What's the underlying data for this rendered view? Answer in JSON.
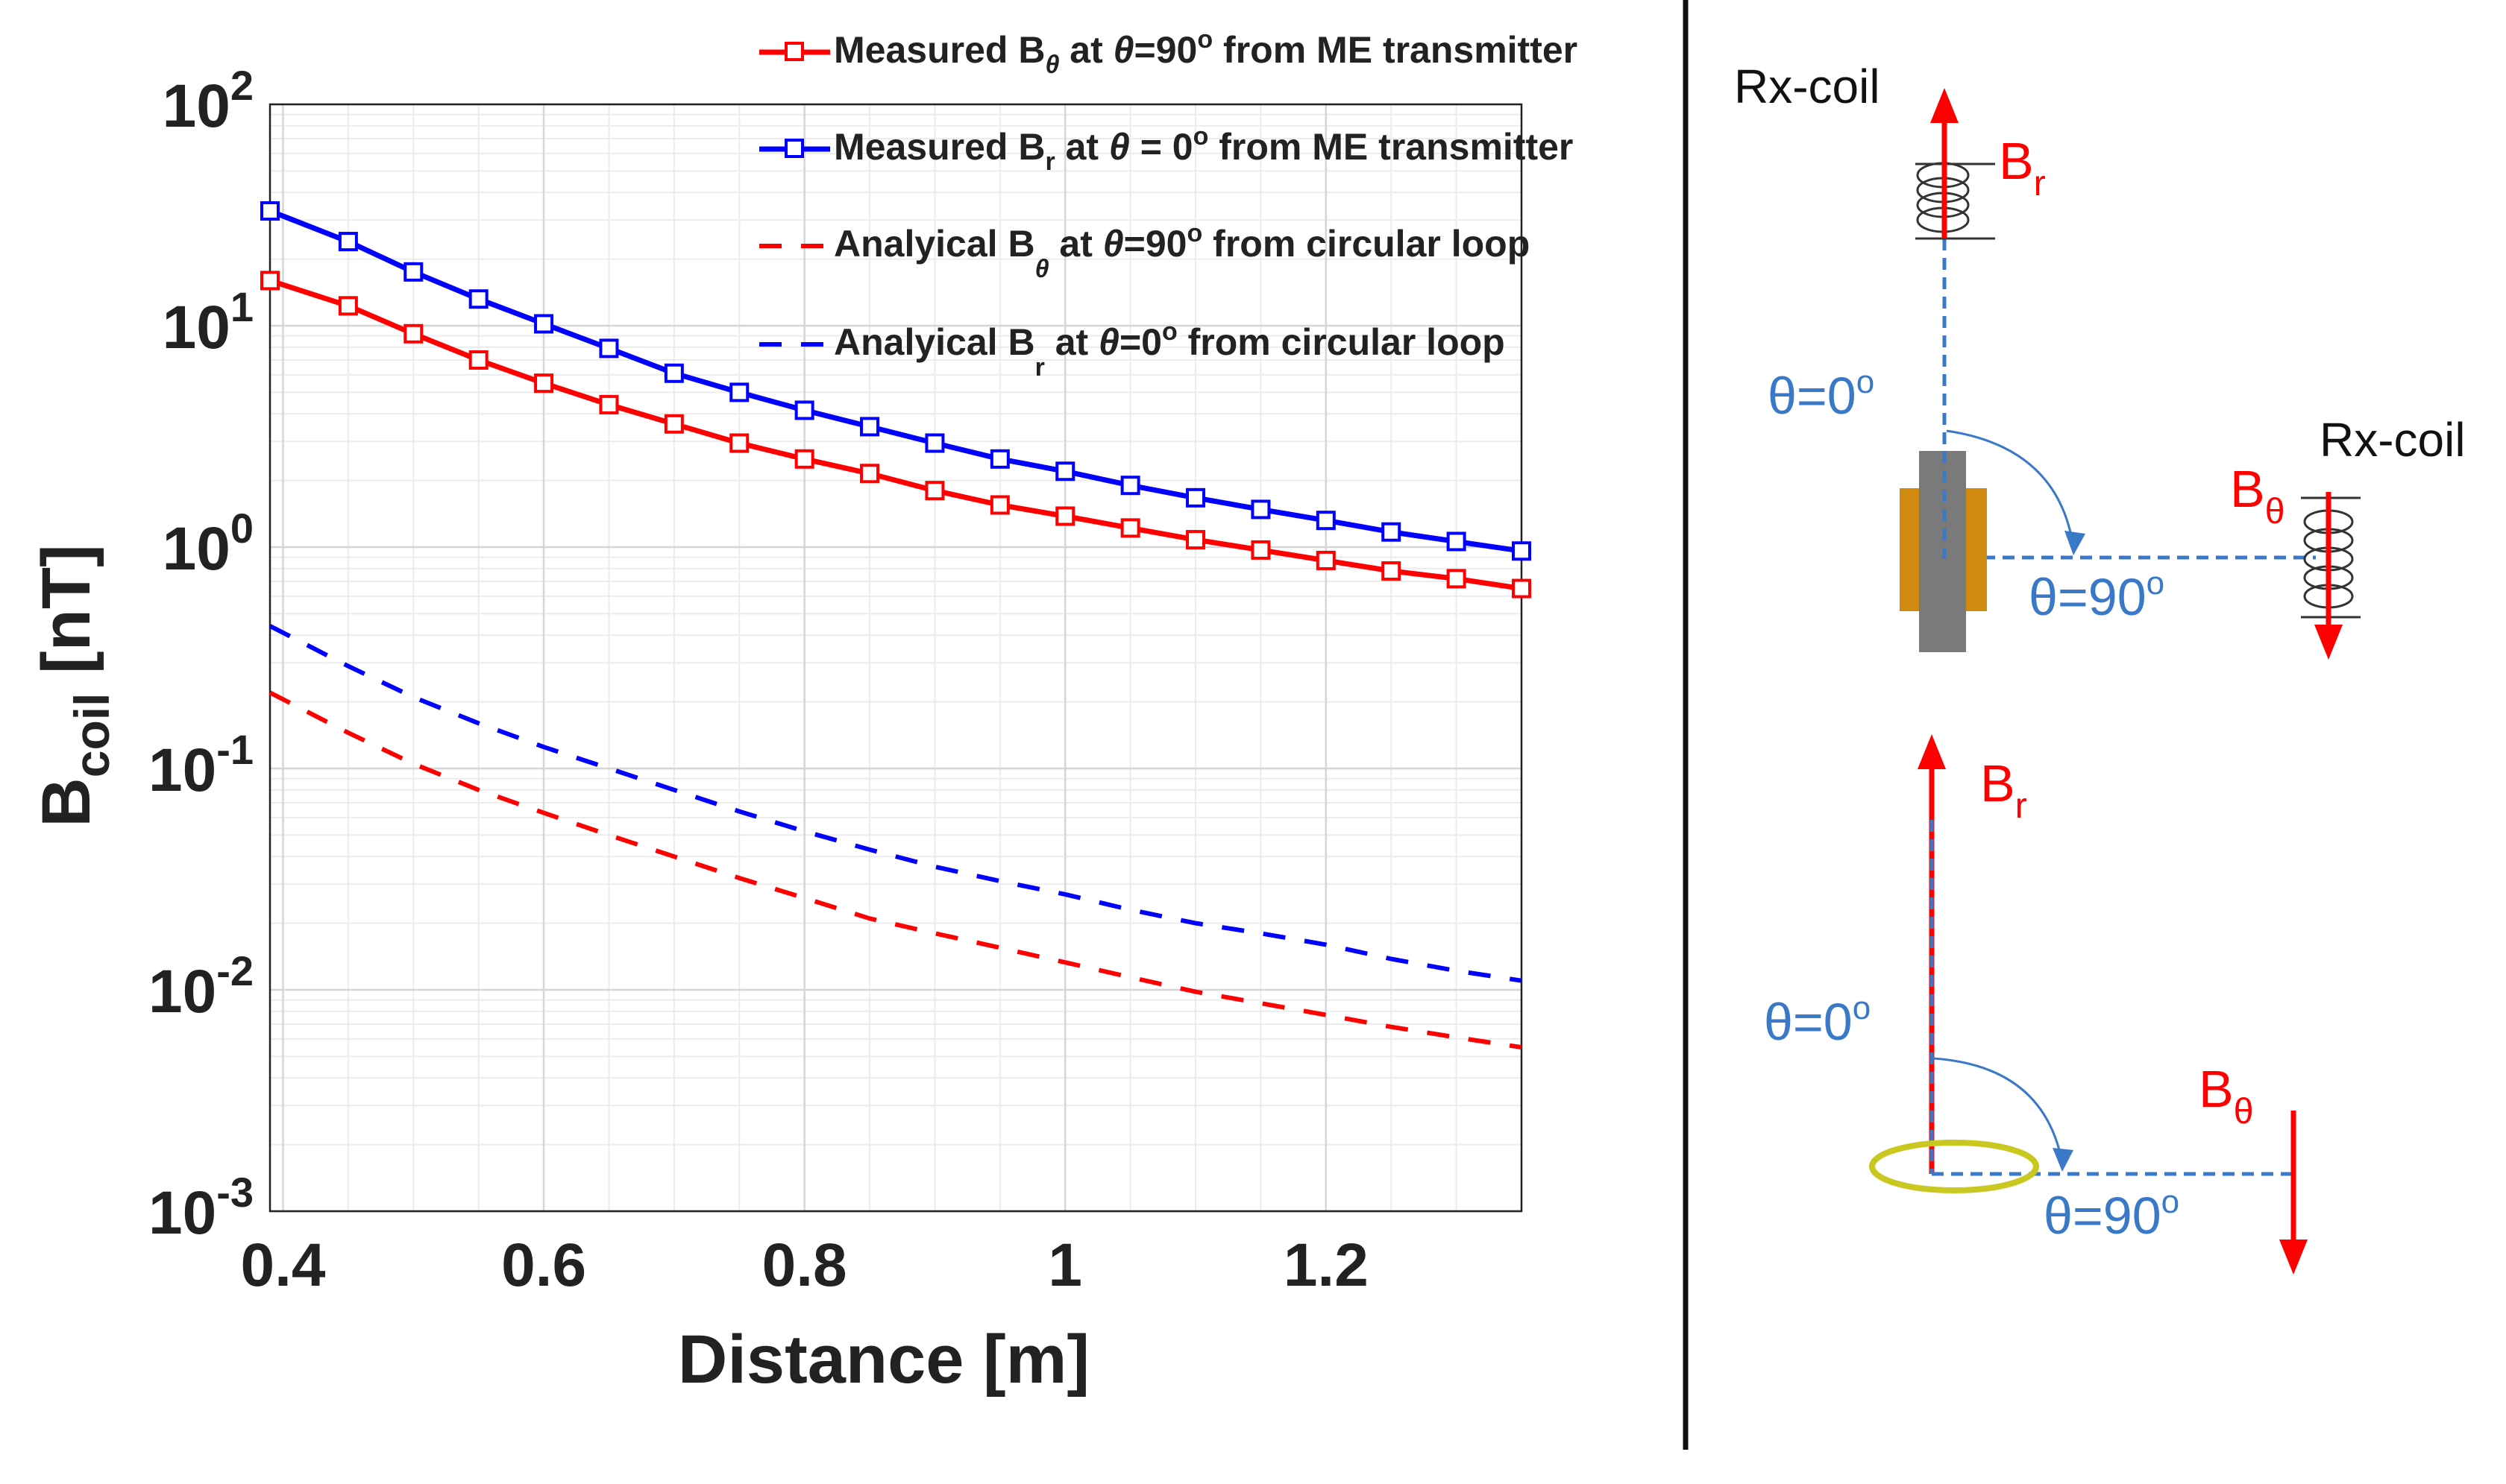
{
  "chart_data": {
    "type": "line",
    "xlabel": "Distance [m]",
    "ylabel": {
      "base": "B",
      "sub": "coil",
      "unit": " [nT]"
    },
    "xlim": [
      0.39,
      1.35
    ],
    "ylim": [
      0.001,
      100
    ],
    "yscale": "log",
    "grid": true,
    "legend_position": "top-right",
    "xticks": [
      0.4,
      0.6,
      0.8,
      1.0,
      1.2
    ],
    "xtick_labels": [
      "0.4",
      "0.6",
      "0.8",
      "1",
      "1.2"
    ],
    "yticks": [
      {
        "value": 100,
        "base": "10",
        "exp": "2"
      },
      {
        "value": 10,
        "base": "10",
        "exp": "1"
      },
      {
        "value": 1,
        "base": "10",
        "exp": "0"
      },
      {
        "value": 0.1,
        "base": "10",
        "exp": "-1"
      },
      {
        "value": 0.01,
        "base": "10",
        "exp": "-2"
      },
      {
        "value": 0.001,
        "base": "10",
        "exp": "-3"
      }
    ],
    "x": [
      0.4,
      0.45,
      0.5,
      0.55,
      0.6,
      0.65,
      0.7,
      0.75,
      0.8,
      0.85,
      0.9,
      0.95,
      1.0,
      1.05,
      1.1,
      1.15,
      1.2,
      1.25,
      1.3,
      1.35
    ],
    "series": [
      {
        "name": "Measured Bθ at θ=90° from ME transmitter",
        "legend": {
          "pre": "Measured B",
          "sub": "θ",
          "mid": " at ",
          "theta": "θ",
          "val": "=90",
          "sup": "o",
          "post": " from ME transmitter"
        },
        "color": "#ff0000",
        "style": "solid-square",
        "x": [
          0.39,
          0.45,
          0.5,
          0.55,
          0.6,
          0.65,
          0.7,
          0.75,
          0.8,
          0.85,
          0.9,
          0.95,
          1.0,
          1.05,
          1.1,
          1.15,
          1.2,
          1.25,
          1.3,
          1.35
        ],
        "values": [
          16,
          12.3,
          9.2,
          7.0,
          5.5,
          4.4,
          3.6,
          2.95,
          2.5,
          2.15,
          1.8,
          1.55,
          1.38,
          1.22,
          1.08,
          0.97,
          0.87,
          0.78,
          0.72,
          0.65
        ]
      },
      {
        "name": "Measured Br at θ = 0° from ME transmitter",
        "legend": {
          "pre": "Measured B",
          "sub": "r",
          "mid": " at ",
          "theta": "θ",
          "val": " = 0",
          "sup": "o",
          "post": " from ME transmitter"
        },
        "color": "#0000ff",
        "style": "solid-square",
        "x": [
          0.39,
          0.45,
          0.5,
          0.55,
          0.6,
          0.65,
          0.7,
          0.75,
          0.8,
          0.85,
          0.9,
          0.95,
          1.0,
          1.05,
          1.1,
          1.15,
          1.2,
          1.25,
          1.3,
          1.35
        ],
        "values": [
          33,
          24,
          17.5,
          13.2,
          10.2,
          7.9,
          6.1,
          5.0,
          4.15,
          3.5,
          2.95,
          2.5,
          2.2,
          1.9,
          1.67,
          1.48,
          1.32,
          1.17,
          1.06,
          0.96
        ]
      },
      {
        "name": "Analyical Bθ at θ=90° from circular loop",
        "legend": {
          "pre": "Analyical B",
          "sub": "θ",
          "mid": " at ",
          "theta": "θ",
          "val": "=90",
          "sup": "o",
          "post": " from circular loop"
        },
        "color": "#ff0000",
        "style": "dashed",
        "x": [
          0.39,
          0.45,
          0.5,
          0.55,
          0.6,
          0.65,
          0.7,
          0.75,
          0.8,
          0.85,
          0.9,
          0.95,
          1.0,
          1.05,
          1.1,
          1.15,
          1.2,
          1.25,
          1.3,
          1.35
        ],
        "values": [
          0.22,
          0.145,
          0.105,
          0.08,
          0.063,
          0.05,
          0.04,
          0.032,
          0.026,
          0.021,
          0.018,
          0.0155,
          0.0133,
          0.0114,
          0.0098,
          0.0087,
          0.0077,
          0.0068,
          0.0061,
          0.0055
        ]
      },
      {
        "name": "Analyical Br at θ=0° from circular loop",
        "legend": {
          "pre": "Analyical B",
          "sub": "r",
          "mid": " at ",
          "theta": "θ",
          "val": "=0",
          "sup": "o",
          "post": " from circular loop"
        },
        "color": "#0000ff",
        "style": "dashed",
        "x": [
          0.39,
          0.45,
          0.5,
          0.55,
          0.6,
          0.65,
          0.7,
          0.75,
          0.8,
          0.85,
          0.9,
          0.95,
          1.0,
          1.05,
          1.1,
          1.15,
          1.2,
          1.25,
          1.3,
          1.35
        ],
        "values": [
          0.44,
          0.29,
          0.21,
          0.16,
          0.125,
          0.1,
          0.08,
          0.064,
          0.052,
          0.043,
          0.036,
          0.031,
          0.027,
          0.023,
          0.02,
          0.018,
          0.016,
          0.0138,
          0.0122,
          0.011
        ]
      }
    ]
  },
  "diagram": {
    "top": {
      "rx_coil_top": "Rx-coil",
      "rx_coil_right": "Rx-coil",
      "br": {
        "base": "B",
        "sub": "r"
      },
      "btheta": {
        "base": "B",
        "sub": "θ"
      },
      "theta0": {
        "text": "θ=0",
        "sup": "o"
      },
      "theta90": {
        "text": "θ=90",
        "sup": "o"
      }
    },
    "bottom": {
      "br": {
        "base": "B",
        "sub": "r"
      },
      "btheta": {
        "base": "B",
        "sub": "θ"
      },
      "theta0": {
        "text": "θ=0",
        "sup": "o"
      },
      "theta90": {
        "text": "θ=90",
        "sup": "o"
      }
    },
    "colors": {
      "arrow": "#ff0000",
      "dashed": "#3a78c8",
      "label_blue": "#3a78c8",
      "label_red": "#ff0000",
      "transmitter_body": "#d08a10",
      "transmitter_core": "#7a7a7a",
      "loop": "#c8c820"
    }
  }
}
